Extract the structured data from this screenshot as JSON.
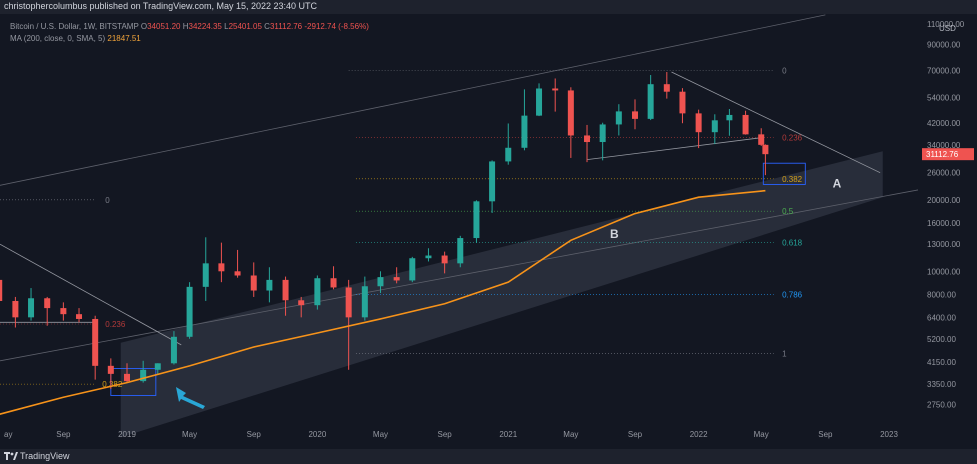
{
  "header": {
    "published": "christophercolumbus published on TradingView.com, May 15, 2022 23:40 UTC"
  },
  "legend": {
    "symbol": "Bitcoin / U.S. Dollar, 1W, BITSTAMP",
    "o_label": "O",
    "o": "34051.20",
    "h_label": "H",
    "h": "34224.35",
    "l_label": "L",
    "l": "25401.05",
    "c_label": "C",
    "c": "31112.76",
    "change": "-2912.74 (-8.56%)",
    "ma_label": "MA (200, close, 0, SMA, 5)",
    "ma_value": "21847.51"
  },
  "footer": {
    "brand": "TradingView"
  },
  "colors": {
    "bg": "#131722",
    "up": "#26a69a",
    "down": "#ef5350",
    "ma": "#f7931a",
    "band": "#2a2e39",
    "accent_blue": "#2196f3",
    "arrow": "#29a7d6"
  },
  "chart_data": {
    "type": "candlestick",
    "title": "Bitcoin / U.S. Dollar, 1W, BITSTAMP",
    "y_scale": "log",
    "currency": "USD",
    "y_ticks": [
      "110000.00",
      "90000.00",
      "70000.00",
      "54000.00",
      "42000.00",
      "34000.00",
      "26000.00",
      "20000.00",
      "16000.00",
      "13000.00",
      "10000.00",
      "8000.00",
      "6400.00",
      "5200.00",
      "4150.00",
      "3350.00",
      "2750.00"
    ],
    "last_price": "31112.76",
    "x_ticks": [
      "ay",
      "Sep",
      "2019",
      "May",
      "Sep",
      "2020",
      "May",
      "Sep",
      "2021",
      "May",
      "Sep",
      "2022",
      "May",
      "Sep",
      "2023"
    ],
    "ohlc": [
      {
        "date": "2018-05-01",
        "o": 9200,
        "h": 9900,
        "l": 7400,
        "c": 7500
      },
      {
        "date": "2018-06-01",
        "o": 7500,
        "h": 7800,
        "l": 5800,
        "c": 6400
      },
      {
        "date": "2018-07-01",
        "o": 6400,
        "h": 8500,
        "l": 6200,
        "c": 7700
      },
      {
        "date": "2018-08-01",
        "o": 7700,
        "h": 7800,
        "l": 5900,
        "c": 7000
      },
      {
        "date": "2018-09-01",
        "o": 7000,
        "h": 7400,
        "l": 6200,
        "c": 6600
      },
      {
        "date": "2018-10-01",
        "o": 6600,
        "h": 7000,
        "l": 6100,
        "c": 6300
      },
      {
        "date": "2018-11-01",
        "o": 6300,
        "h": 6500,
        "l": 3500,
        "c": 4000
      },
      {
        "date": "2018-12-01",
        "o": 4000,
        "h": 4300,
        "l": 3200,
        "c": 3700
      },
      {
        "date": "2019-01-01",
        "o": 3700,
        "h": 4100,
        "l": 3400,
        "c": 3450
      },
      {
        "date": "2019-02-01",
        "o": 3450,
        "h": 4200,
        "l": 3400,
        "c": 3850
      },
      {
        "date": "2019-03-01",
        "o": 3850,
        "h": 4100,
        "l": 3700,
        "c": 4100
      },
      {
        "date": "2019-04-01",
        "o": 4100,
        "h": 5600,
        "l": 4050,
        "c": 5300
      },
      {
        "date": "2019-05-01",
        "o": 5300,
        "h": 9000,
        "l": 5200,
        "c": 8600
      },
      {
        "date": "2019-06-01",
        "o": 8600,
        "h": 13900,
        "l": 7500,
        "c": 10800
      },
      {
        "date": "2019-07-01",
        "o": 10800,
        "h": 13200,
        "l": 9000,
        "c": 10000
      },
      {
        "date": "2019-08-01",
        "o": 10000,
        "h": 12300,
        "l": 9400,
        "c": 9600
      },
      {
        "date": "2019-09-01",
        "o": 9600,
        "h": 10900,
        "l": 7800,
        "c": 8300
      },
      {
        "date": "2019-10-01",
        "o": 8300,
        "h": 10400,
        "l": 7400,
        "c": 9200
      },
      {
        "date": "2019-11-01",
        "o": 9200,
        "h": 9500,
        "l": 6500,
        "c": 7550
      },
      {
        "date": "2019-12-01",
        "o": 7550,
        "h": 7800,
        "l": 6400,
        "c": 7200
      },
      {
        "date": "2020-01-01",
        "o": 7200,
        "h": 9600,
        "l": 6900,
        "c": 9350
      },
      {
        "date": "2020-02-01",
        "o": 9350,
        "h": 10500,
        "l": 8400,
        "c": 8550
      },
      {
        "date": "2020-03-01",
        "o": 8550,
        "h": 9200,
        "l": 3850,
        "c": 6400
      },
      {
        "date": "2020-04-01",
        "o": 6400,
        "h": 9500,
        "l": 6200,
        "c": 8650
      },
      {
        "date": "2020-05-01",
        "o": 8650,
        "h": 10000,
        "l": 8100,
        "c": 9450
      },
      {
        "date": "2020-06-01",
        "o": 9450,
        "h": 10400,
        "l": 8900,
        "c": 9150
      },
      {
        "date": "2020-07-01",
        "o": 9150,
        "h": 11500,
        "l": 9000,
        "c": 11350
      },
      {
        "date": "2020-08-01",
        "o": 11350,
        "h": 12500,
        "l": 11000,
        "c": 11650
      },
      {
        "date": "2020-09-01",
        "o": 11650,
        "h": 12100,
        "l": 9800,
        "c": 10800
      },
      {
        "date": "2020-10-01",
        "o": 10800,
        "h": 14100,
        "l": 10400,
        "c": 13800
      },
      {
        "date": "2020-11-01",
        "o": 13800,
        "h": 19900,
        "l": 13200,
        "c": 19700
      },
      {
        "date": "2020-12-01",
        "o": 19700,
        "h": 29300,
        "l": 17600,
        "c": 29000
      },
      {
        "date": "2021-01-01",
        "o": 29000,
        "h": 41900,
        "l": 28100,
        "c": 33100
      },
      {
        "date": "2021-02-01",
        "o": 33100,
        "h": 58300,
        "l": 32300,
        "c": 45200
      },
      {
        "date": "2021-03-01",
        "o": 45200,
        "h": 61800,
        "l": 45000,
        "c": 58800
      },
      {
        "date": "2021-04-01",
        "o": 58800,
        "h": 64800,
        "l": 47000,
        "c": 57700
      },
      {
        "date": "2021-05-01",
        "o": 57700,
        "h": 59500,
        "l": 30000,
        "c": 37300
      },
      {
        "date": "2021-06-01",
        "o": 37300,
        "h": 41300,
        "l": 28800,
        "c": 35000
      },
      {
        "date": "2021-07-01",
        "o": 35000,
        "h": 42200,
        "l": 29300,
        "c": 41500
      },
      {
        "date": "2021-08-01",
        "o": 41500,
        "h": 50500,
        "l": 37300,
        "c": 47100
      },
      {
        "date": "2021-09-01",
        "o": 47100,
        "h": 52900,
        "l": 39600,
        "c": 43800
      },
      {
        "date": "2021-10-01",
        "o": 43800,
        "h": 67000,
        "l": 43300,
        "c": 61300
      },
      {
        "date": "2021-11-01",
        "o": 61300,
        "h": 69000,
        "l": 53300,
        "c": 57000
      },
      {
        "date": "2021-12-01",
        "o": 57000,
        "h": 59000,
        "l": 42000,
        "c": 46200
      },
      {
        "date": "2022-01-01",
        "o": 46200,
        "h": 47900,
        "l": 33000,
        "c": 38500
      },
      {
        "date": "2022-02-01",
        "o": 38500,
        "h": 45800,
        "l": 34300,
        "c": 43200
      },
      {
        "date": "2022-03-01",
        "o": 43200,
        "h": 48200,
        "l": 37200,
        "c": 45500
      },
      {
        "date": "2022-04-01",
        "o": 45500,
        "h": 47400,
        "l": 37600,
        "c": 37700
      },
      {
        "date": "2022-05-01",
        "o": 37700,
        "h": 40000,
        "l": 33700,
        "c": 34051.2
      },
      {
        "date": "2022-05-09",
        "o": 34051.2,
        "h": 34224.35,
        "l": 25401.05,
        "c": 31112.76
      }
    ],
    "ma200": [
      {
        "date": "2018-05-01",
        "v": 2500
      },
      {
        "date": "2018-09-01",
        "v": 2950
      },
      {
        "date": "2019-01-01",
        "v": 3400
      },
      {
        "date": "2019-05-01",
        "v": 4000
      },
      {
        "date": "2019-09-01",
        "v": 4800
      },
      {
        "date": "2020-01-01",
        "v": 5500
      },
      {
        "date": "2020-05-01",
        "v": 6300
      },
      {
        "date": "2020-09-01",
        "v": 7300
      },
      {
        "date": "2021-01-01",
        "v": 9000
      },
      {
        "date": "2021-05-01",
        "v": 13500
      },
      {
        "date": "2021-09-01",
        "v": 17500
      },
      {
        "date": "2022-01-01",
        "v": 20500
      },
      {
        "date": "2022-05-09",
        "v": 21847.51
      }
    ],
    "fib_right": [
      {
        "label": "0",
        "price": 70000,
        "color": "#787b86"
      },
      {
        "label": "0.236",
        "price": 36500,
        "color": "#b23a3a"
      },
      {
        "label": "0.382",
        "price": 24500,
        "color": "#d4a017"
      },
      {
        "label": "0.5",
        "price": 17900,
        "color": "#4caf50"
      },
      {
        "label": "0.618",
        "price": 13200,
        "color": "#26a69a"
      },
      {
        "label": "0.786",
        "price": 8000,
        "color": "#2196f3"
      },
      {
        "label": "1",
        "price": 4500,
        "color": "#787b86"
      }
    ],
    "fib_left": [
      {
        "label": "0",
        "price": 20000,
        "color": "#787b86"
      },
      {
        "label": "0.236",
        "price": 6000,
        "color": "#b23a3a"
      },
      {
        "label": "0.382",
        "price": 3350,
        "color": "#d4a017"
      }
    ],
    "annotations": [
      "A",
      "B"
    ]
  }
}
